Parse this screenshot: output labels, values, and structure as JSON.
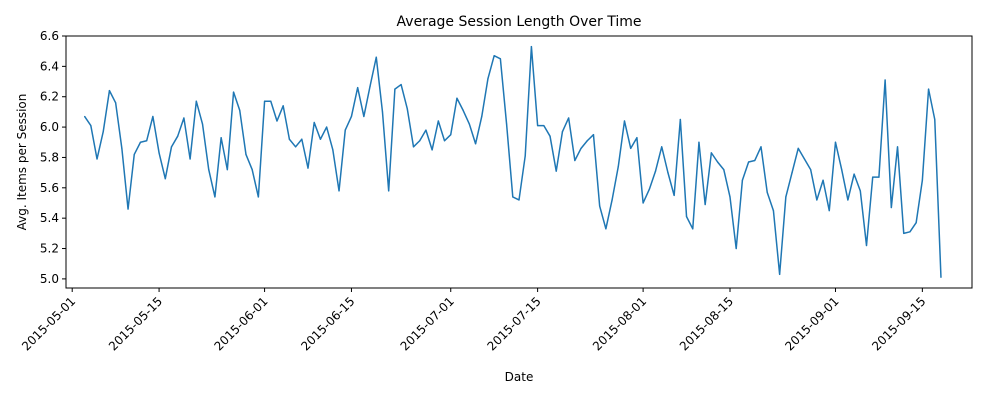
{
  "chart_data": {
    "type": "line",
    "title": "Average Session Length Over Time",
    "xlabel": "Date",
    "ylabel": "Avg. Items per Session",
    "grid": false,
    "legend": "none",
    "ylim": [
      4.94,
      6.6
    ],
    "xlim": [
      "2015-04-30",
      "2015-09-23"
    ],
    "yticks": [
      "5.0",
      "5.2",
      "5.4",
      "5.6",
      "5.8",
      "6.0",
      "6.2",
      "6.4",
      "6.6"
    ],
    "xticks": [
      "2015-05-01",
      "2015-05-15",
      "2015-06-01",
      "2015-06-15",
      "2015-07-01",
      "2015-07-15",
      "2015-08-01",
      "2015-08-15",
      "2015-09-01",
      "2015-09-15"
    ],
    "line_color": "#1f77b4",
    "series": [
      {
        "x": [
          "2015-05-03",
          "2015-05-04",
          "2015-05-05",
          "2015-05-06",
          "2015-05-07",
          "2015-05-08",
          "2015-05-09",
          "2015-05-10",
          "2015-05-11",
          "2015-05-12",
          "2015-05-13",
          "2015-05-14",
          "2015-05-15",
          "2015-05-16",
          "2015-05-17",
          "2015-05-18",
          "2015-05-19",
          "2015-05-20",
          "2015-05-21",
          "2015-05-22",
          "2015-05-23",
          "2015-05-24",
          "2015-05-25",
          "2015-05-26",
          "2015-05-27",
          "2015-05-28",
          "2015-05-29",
          "2015-05-30",
          "2015-05-31",
          "2015-06-01",
          "2015-06-02",
          "2015-06-03",
          "2015-06-04",
          "2015-06-05",
          "2015-06-06",
          "2015-06-07",
          "2015-06-08",
          "2015-06-09",
          "2015-06-10",
          "2015-06-11",
          "2015-06-12",
          "2015-06-13",
          "2015-06-14",
          "2015-06-15",
          "2015-06-16",
          "2015-06-17",
          "2015-06-18",
          "2015-06-19",
          "2015-06-20",
          "2015-06-21",
          "2015-06-22",
          "2015-06-23",
          "2015-06-24",
          "2015-06-25",
          "2015-06-26",
          "2015-06-27",
          "2015-06-28",
          "2015-06-29",
          "2015-06-30",
          "2015-07-01",
          "2015-07-02",
          "2015-07-03",
          "2015-07-04",
          "2015-07-05",
          "2015-07-06",
          "2015-07-07",
          "2015-07-08",
          "2015-07-09",
          "2015-07-10",
          "2015-07-11",
          "2015-07-12",
          "2015-07-13",
          "2015-07-14",
          "2015-07-15",
          "2015-07-16",
          "2015-07-17",
          "2015-07-18",
          "2015-07-19",
          "2015-07-20",
          "2015-07-21",
          "2015-07-22",
          "2015-07-23",
          "2015-07-24",
          "2015-07-25",
          "2015-07-26",
          "2015-07-27",
          "2015-07-28",
          "2015-07-29",
          "2015-07-30",
          "2015-07-31",
          "2015-08-01",
          "2015-08-02",
          "2015-08-03",
          "2015-08-04",
          "2015-08-05",
          "2015-08-06",
          "2015-08-07",
          "2015-08-08",
          "2015-08-09",
          "2015-08-10",
          "2015-08-11",
          "2015-08-12",
          "2015-08-13",
          "2015-08-14",
          "2015-08-15",
          "2015-08-16",
          "2015-08-17",
          "2015-08-18",
          "2015-08-19",
          "2015-08-20",
          "2015-08-21",
          "2015-08-22",
          "2015-08-23",
          "2015-08-24",
          "2015-08-25",
          "2015-08-26",
          "2015-08-27",
          "2015-08-28",
          "2015-08-29",
          "2015-08-30",
          "2015-08-31",
          "2015-09-01",
          "2015-09-02",
          "2015-09-03",
          "2015-09-04",
          "2015-09-05",
          "2015-09-06",
          "2015-09-07",
          "2015-09-08",
          "2015-09-09",
          "2015-09-10",
          "2015-09-11",
          "2015-09-12",
          "2015-09-13",
          "2015-09-14",
          "2015-09-15",
          "2015-09-16",
          "2015-09-17",
          "2015-09-18"
        ],
        "values": [
          6.07,
          6.01,
          5.79,
          5.97,
          6.24,
          6.16,
          5.86,
          5.46,
          5.82,
          5.9,
          5.91,
          6.07,
          5.83,
          5.66,
          5.87,
          5.94,
          6.06,
          5.79,
          6.17,
          6.02,
          5.72,
          5.54,
          5.93,
          5.72,
          6.23,
          6.11,
          5.82,
          5.72,
          5.54,
          6.17,
          6.17,
          6.04,
          6.14,
          5.92,
          5.87,
          5.92,
          5.73,
          6.03,
          5.92,
          6.0,
          5.85,
          5.58,
          5.98,
          6.07,
          6.26,
          6.07,
          6.27,
          6.46,
          6.1,
          5.58,
          6.25,
          6.28,
          6.12,
          5.87,
          5.91,
          5.98,
          5.85,
          6.04,
          5.91,
          5.95,
          6.19,
          6.11,
          6.02,
          5.89,
          6.07,
          6.32,
          6.47,
          6.45,
          6.02,
          5.54,
          5.52,
          5.81,
          6.53,
          6.01,
          6.01,
          5.94,
          5.71,
          5.97,
          6.06,
          5.78,
          5.86,
          5.91,
          5.95,
          5.48,
          5.33,
          5.52,
          5.74,
          6.04,
          5.86,
          5.93,
          5.5,
          5.59,
          5.71,
          5.87,
          5.7,
          5.55,
          6.05,
          5.41,
          5.33,
          5.9,
          5.49,
          5.83,
          5.77,
          5.72,
          5.54,
          5.2,
          5.65,
          5.77,
          5.78,
          5.87,
          5.57,
          5.45,
          5.03,
          5.54,
          5.7,
          5.86,
          5.79,
          5.72,
          5.52,
          5.65,
          5.45,
          5.9,
          5.72,
          5.52,
          5.69,
          5.58,
          5.22,
          5.67,
          5.67,
          6.31,
          5.47,
          5.87,
          5.3,
          5.31,
          5.37,
          5.65,
          6.25,
          6.05,
          5.01
        ]
      }
    ]
  }
}
